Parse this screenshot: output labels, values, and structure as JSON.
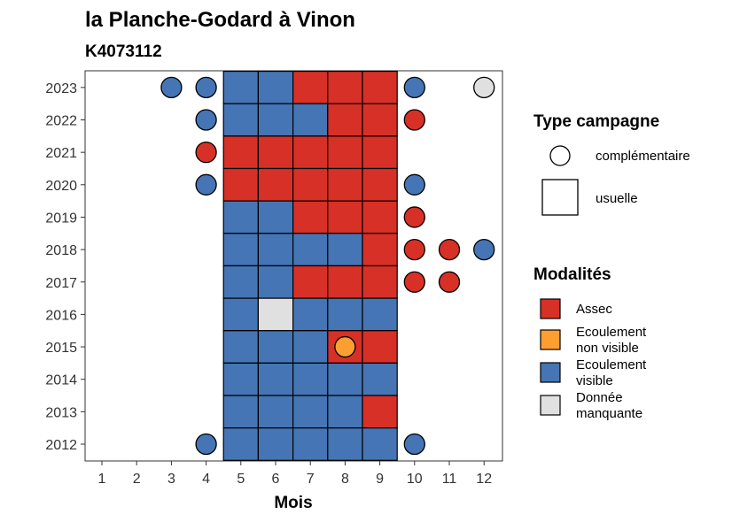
{
  "chart_data": {
    "type": "heatmap",
    "title": "la Planche-Godard à Vinon",
    "subtitle": "K4073112",
    "xlabel": "Mois",
    "ylabel": "",
    "x_ticks": [
      "1",
      "2",
      "3",
      "4",
      "5",
      "6",
      "7",
      "8",
      "9",
      "10",
      "11",
      "12"
    ],
    "y_ticks": [
      "2012",
      "2013",
      "2014",
      "2015",
      "2016",
      "2017",
      "2018",
      "2019",
      "2020",
      "2021",
      "2022",
      "2023"
    ],
    "colors": {
      "assec": "#d73027",
      "ecoulement_non_visible": "#fd9e31",
      "ecoulement_visible": "#4575b4",
      "donnee_manquante": "#e0e0e0"
    },
    "usual_cells": [
      {
        "year": 2023,
        "month": 5,
        "value": "ecoulement_visible"
      },
      {
        "year": 2023,
        "month": 6,
        "value": "ecoulement_visible"
      },
      {
        "year": 2023,
        "month": 7,
        "value": "assec"
      },
      {
        "year": 2023,
        "month": 8,
        "value": "assec"
      },
      {
        "year": 2023,
        "month": 9,
        "value": "assec"
      },
      {
        "year": 2022,
        "month": 5,
        "value": "ecoulement_visible"
      },
      {
        "year": 2022,
        "month": 6,
        "value": "ecoulement_visible"
      },
      {
        "year": 2022,
        "month": 7,
        "value": "ecoulement_visible"
      },
      {
        "year": 2022,
        "month": 8,
        "value": "assec"
      },
      {
        "year": 2022,
        "month": 9,
        "value": "assec"
      },
      {
        "year": 2021,
        "month": 5,
        "value": "assec"
      },
      {
        "year": 2021,
        "month": 6,
        "value": "assec"
      },
      {
        "year": 2021,
        "month": 7,
        "value": "assec"
      },
      {
        "year": 2021,
        "month": 8,
        "value": "assec"
      },
      {
        "year": 2021,
        "month": 9,
        "value": "assec"
      },
      {
        "year": 2020,
        "month": 5,
        "value": "assec"
      },
      {
        "year": 2020,
        "month": 6,
        "value": "assec"
      },
      {
        "year": 2020,
        "month": 7,
        "value": "assec"
      },
      {
        "year": 2020,
        "month": 8,
        "value": "assec"
      },
      {
        "year": 2020,
        "month": 9,
        "value": "assec"
      },
      {
        "year": 2019,
        "month": 5,
        "value": "ecoulement_visible"
      },
      {
        "year": 2019,
        "month": 6,
        "value": "ecoulement_visible"
      },
      {
        "year": 2019,
        "month": 7,
        "value": "assec"
      },
      {
        "year": 2019,
        "month": 8,
        "value": "assec"
      },
      {
        "year": 2019,
        "month": 9,
        "value": "assec"
      },
      {
        "year": 2018,
        "month": 5,
        "value": "ecoulement_visible"
      },
      {
        "year": 2018,
        "month": 6,
        "value": "ecoulement_visible"
      },
      {
        "year": 2018,
        "month": 7,
        "value": "ecoulement_visible"
      },
      {
        "year": 2018,
        "month": 8,
        "value": "ecoulement_visible"
      },
      {
        "year": 2018,
        "month": 9,
        "value": "assec"
      },
      {
        "year": 2017,
        "month": 5,
        "value": "ecoulement_visible"
      },
      {
        "year": 2017,
        "month": 6,
        "value": "ecoulement_visible"
      },
      {
        "year": 2017,
        "month": 7,
        "value": "assec"
      },
      {
        "year": 2017,
        "month": 8,
        "value": "assec"
      },
      {
        "year": 2017,
        "month": 9,
        "value": "assec"
      },
      {
        "year": 2016,
        "month": 5,
        "value": "ecoulement_visible"
      },
      {
        "year": 2016,
        "month": 6,
        "value": "donnee_manquante"
      },
      {
        "year": 2016,
        "month": 7,
        "value": "ecoulement_visible"
      },
      {
        "year": 2016,
        "month": 8,
        "value": "ecoulement_visible"
      },
      {
        "year": 2016,
        "month": 9,
        "value": "ecoulement_visible"
      },
      {
        "year": 2015,
        "month": 5,
        "value": "ecoulement_visible"
      },
      {
        "year": 2015,
        "month": 6,
        "value": "ecoulement_visible"
      },
      {
        "year": 2015,
        "month": 7,
        "value": "ecoulement_visible"
      },
      {
        "year": 2015,
        "month": 8,
        "value": "assec"
      },
      {
        "year": 2015,
        "month": 9,
        "value": "assec"
      },
      {
        "year": 2014,
        "month": 5,
        "value": "ecoulement_visible"
      },
      {
        "year": 2014,
        "month": 6,
        "value": "ecoulement_visible"
      },
      {
        "year": 2014,
        "month": 7,
        "value": "ecoulement_visible"
      },
      {
        "year": 2014,
        "month": 8,
        "value": "ecoulement_visible"
      },
      {
        "year": 2014,
        "month": 9,
        "value": "ecoulement_visible"
      },
      {
        "year": 2013,
        "month": 5,
        "value": "ecoulement_visible"
      },
      {
        "year": 2013,
        "month": 6,
        "value": "ecoulement_visible"
      },
      {
        "year": 2013,
        "month": 7,
        "value": "ecoulement_visible"
      },
      {
        "year": 2013,
        "month": 8,
        "value": "ecoulement_visible"
      },
      {
        "year": 2013,
        "month": 9,
        "value": "assec"
      },
      {
        "year": 2012,
        "month": 5,
        "value": "ecoulement_visible"
      },
      {
        "year": 2012,
        "month": 6,
        "value": "ecoulement_visible"
      },
      {
        "year": 2012,
        "month": 7,
        "value": "ecoulement_visible"
      },
      {
        "year": 2012,
        "month": 8,
        "value": "ecoulement_visible"
      },
      {
        "year": 2012,
        "month": 9,
        "value": "ecoulement_visible"
      }
    ],
    "complementary_points": [
      {
        "year": 2023,
        "month": 3,
        "value": "ecoulement_visible"
      },
      {
        "year": 2023,
        "month": 4,
        "value": "ecoulement_visible"
      },
      {
        "year": 2023,
        "month": 10,
        "value": "ecoulement_visible"
      },
      {
        "year": 2023,
        "month": 12,
        "value": "donnee_manquante"
      },
      {
        "year": 2022,
        "month": 4,
        "value": "ecoulement_visible"
      },
      {
        "year": 2022,
        "month": 10,
        "value": "assec"
      },
      {
        "year": 2021,
        "month": 4,
        "value": "assec"
      },
      {
        "year": 2020,
        "month": 4,
        "value": "ecoulement_visible"
      },
      {
        "year": 2020,
        "month": 10,
        "value": "ecoulement_visible"
      },
      {
        "year": 2019,
        "month": 10,
        "value": "assec"
      },
      {
        "year": 2018,
        "month": 10,
        "value": "assec"
      },
      {
        "year": 2018,
        "month": 11,
        "value": "assec"
      },
      {
        "year": 2018,
        "month": 12,
        "value": "ecoulement_visible"
      },
      {
        "year": 2017,
        "month": 10,
        "value": "assec"
      },
      {
        "year": 2017,
        "month": 11,
        "value": "assec"
      },
      {
        "year": 2015,
        "month": 8,
        "value": "ecoulement_non_visible"
      },
      {
        "year": 2012,
        "month": 4,
        "value": "ecoulement_visible"
      },
      {
        "year": 2012,
        "month": 10,
        "value": "ecoulement_visible"
      }
    ],
    "legend_type": {
      "title": "Type campagne",
      "items": [
        {
          "shape": "circle",
          "label": "complémentaire"
        },
        {
          "shape": "square",
          "label": "usuelle"
        }
      ]
    },
    "legend_modalites": {
      "title": "Modalités",
      "items": [
        {
          "key": "assec",
          "lines": [
            "Assec"
          ]
        },
        {
          "key": "ecoulement_non_visible",
          "lines": [
            "Ecoulement",
            "non visible"
          ]
        },
        {
          "key": "ecoulement_visible",
          "lines": [
            "Ecoulement",
            "visible"
          ]
        },
        {
          "key": "donnee_manquante",
          "lines": [
            "Donnée",
            "manquante"
          ]
        }
      ]
    },
    "grid": false,
    "legend_position": "right"
  }
}
